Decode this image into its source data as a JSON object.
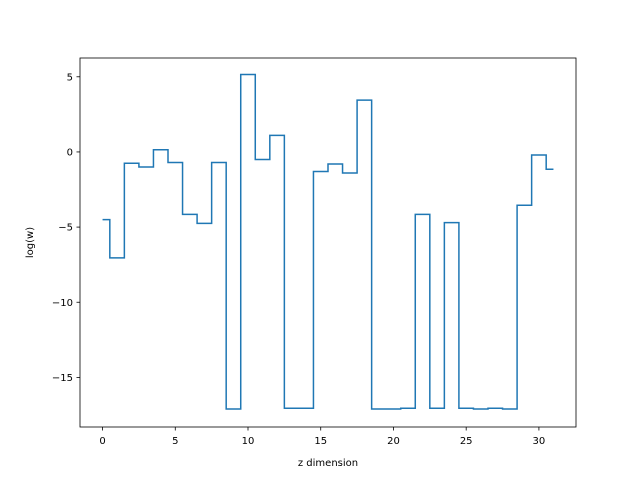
{
  "chart_data": {
    "type": "line",
    "drawstyle": "steps-mid",
    "title": "",
    "xlabel": "z dimension",
    "ylabel": "log(w)",
    "xlim": [
      -1.55,
      32.55
    ],
    "ylim": [
      -18.3,
      6.25
    ],
    "xticks": [
      0,
      5,
      10,
      15,
      20,
      25,
      30
    ],
    "yticks": [
      5,
      0,
      -5,
      -10,
      -15
    ],
    "ytick_labels": [
      "5",
      "0",
      "−5",
      "−10",
      "−15"
    ],
    "grid": false,
    "legend": "none",
    "line_color": "#1f77b4",
    "x": [
      0,
      1,
      2,
      3,
      4,
      5,
      6,
      7,
      8,
      9,
      10,
      11,
      12,
      13,
      14,
      15,
      16,
      17,
      18,
      19,
      20,
      21,
      22,
      23,
      24,
      25,
      26,
      27,
      28,
      29,
      30,
      31
    ],
    "y": [
      -4.5,
      -7.05,
      -0.75,
      -1.0,
      0.15,
      -0.7,
      -4.15,
      -4.75,
      -0.7,
      -17.1,
      5.15,
      -0.5,
      1.1,
      -17.05,
      -17.05,
      -1.3,
      -0.8,
      -1.4,
      3.45,
      -17.1,
      -17.1,
      -17.05,
      -4.15,
      -17.05,
      -4.7,
      -17.05,
      -17.1,
      -17.05,
      -17.1,
      -3.55,
      -0.2,
      -1.15
    ]
  }
}
